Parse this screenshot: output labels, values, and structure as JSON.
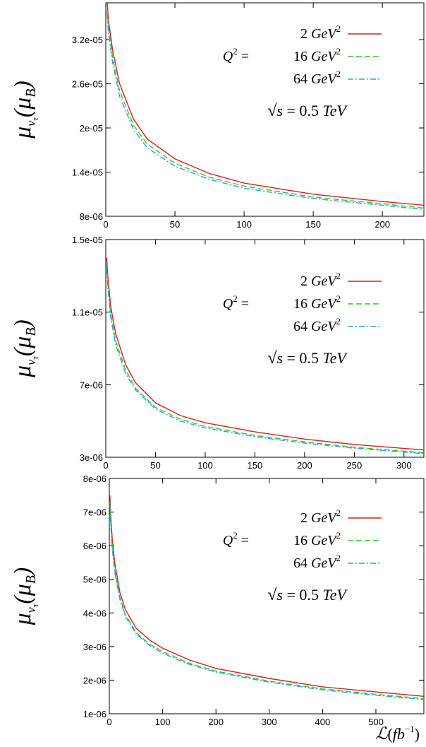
{
  "chart_data": [
    {
      "type": "line",
      "xlabel": "",
      "ylabel": "μ_ντ(μ_B)",
      "xlim": [
        0,
        230
      ],
      "ylim": [
        8e-06,
        3.7e-05
      ],
      "xticks": [
        0,
        50,
        100,
        150,
        200
      ],
      "xtick_labels": [
        "0",
        "50",
        "100",
        "150",
        "200"
      ],
      "yticks": [
        8e-06,
        1.4e-05,
        2e-05,
        2.6e-05,
        3.2e-05
      ],
      "ytick_labels": [
        "8e-06",
        "1.4e-05",
        "2e-05",
        "2.6e-05",
        "3.2e-05"
      ],
      "legend_prefix": "Q² =",
      "legend_position": "top-right",
      "annotation": "√s = 0.5 TeV",
      "series": [
        {
          "name": "2 GeV²",
          "color": "#e41a1c",
          "dash": "solid",
          "x": [
            1,
            2,
            5,
            10,
            20,
            30,
            50,
            75,
            100,
            150,
            200,
            230
          ],
          "y": [
            3.7e-05,
            3.45e-05,
            3.05e-05,
            2.6e-05,
            2.12e-05,
            1.85e-05,
            1.58e-05,
            1.38e-05,
            1.25e-05,
            1.1e-05,
            1e-05,
            9.5e-06
          ]
        },
        {
          "name": "16 GeV²",
          "color": "#2ec82e",
          "dash": "dashed",
          "x": [
            1,
            2,
            5,
            10,
            20,
            30,
            50,
            75,
            100,
            150,
            200,
            230
          ],
          "y": [
            3.6e-05,
            3.35e-05,
            2.95e-05,
            2.5e-05,
            2.04e-05,
            1.78e-05,
            1.52e-05,
            1.33e-05,
            1.21e-05,
            1.06e-05,
            9.7e-06,
            9.1e-06
          ]
        },
        {
          "name": "64 GeV²",
          "color": "#1ea7e0",
          "dash": "dashdot",
          "x": [
            1,
            2,
            5,
            10,
            20,
            30,
            50,
            75,
            100,
            150,
            200,
            230
          ],
          "y": [
            3.55e-05,
            3.28e-05,
            2.88e-05,
            2.43e-05,
            1.98e-05,
            1.73e-05,
            1.48e-05,
            1.3e-05,
            1.18e-05,
            1.04e-05,
            9.5e-06,
            8.9e-06
          ]
        }
      ]
    },
    {
      "type": "line",
      "xlabel": "",
      "ylabel": "μ_ντ(μ_B)",
      "xlim": [
        0,
        320
      ],
      "ylim": [
        3e-06,
        1.5e-05
      ],
      "xticks": [
        0,
        50,
        100,
        150,
        200,
        250,
        300
      ],
      "xtick_labels": [
        "0",
        "50",
        "100",
        "150",
        "200",
        "250",
        "300"
      ],
      "yticks": [
        3e-06,
        7e-06,
        1.1e-05,
        1.5e-05
      ],
      "ytick_labels": [
        "3e-06",
        "7e-06",
        "1.1e-05",
        "1.5e-05"
      ],
      "legend_prefix": "Q² =",
      "legend_position": "top-right",
      "annotation": "√s = 0.5 TeV",
      "series": [
        {
          "name": "2 GeV²",
          "color": "#e41a1c",
          "dash": "solid",
          "x": [
            1,
            2,
            5,
            10,
            20,
            30,
            50,
            75,
            100,
            150,
            200,
            250,
            320
          ],
          "y": [
            1.4e-05,
            1.3e-05,
            1.13e-05,
            9.8e-06,
            8.1e-06,
            7.1e-06,
            6e-06,
            5.3e-06,
            4.9e-06,
            4.4e-06,
            4e-06,
            3.7e-06,
            3.4e-06
          ]
        },
        {
          "name": "16 GeV²",
          "color": "#2ec82e",
          "dash": "dashed",
          "x": [
            1,
            2,
            5,
            10,
            20,
            30,
            50,
            75,
            100,
            150,
            200,
            250,
            320
          ],
          "y": [
            1.36e-05,
            1.26e-05,
            1.09e-05,
            9.4e-06,
            7.8e-06,
            6.8e-06,
            5.75e-06,
            5.1e-06,
            4.7e-06,
            4.2e-06,
            3.85e-06,
            3.55e-06,
            3.25e-06
          ]
        },
        {
          "name": "64 GeV²",
          "color": "#1ea7e0",
          "dash": "dashdot",
          "x": [
            1,
            2,
            5,
            10,
            20,
            30,
            50,
            75,
            100,
            150,
            200,
            250,
            320
          ],
          "y": [
            1.34e-05,
            1.24e-05,
            1.07e-05,
            9.2e-06,
            7.6e-06,
            6.7e-06,
            5.65e-06,
            5e-06,
            4.62e-06,
            4.13e-06,
            3.78e-06,
            3.5e-06,
            3.2e-06
          ]
        }
      ]
    },
    {
      "type": "line",
      "xlabel": "ℒ(fb⁻¹)",
      "ylabel": "μ_ντ(μ_B)",
      "xlim": [
        0,
        590
      ],
      "ylim": [
        1e-06,
        8e-06
      ],
      "xticks": [
        0,
        100,
        200,
        300,
        400,
        500
      ],
      "xtick_labels": [
        "0",
        "100",
        "200",
        "300",
        "400",
        "500"
      ],
      "yticks": [
        1e-06,
        2e-06,
        3e-06,
        4e-06,
        5e-06,
        6e-06,
        7e-06,
        8e-06
      ],
      "ytick_labels": [
        "1e-06",
        "2e-06",
        "3e-06",
        "4e-06",
        "5e-06",
        "6e-06",
        "7e-06",
        "8e-06"
      ],
      "legend_prefix": "Q² =",
      "legend_position": "top-right",
      "annotation": "√s = 0.5 TeV",
      "series": [
        {
          "name": "2 GeV²",
          "color": "#e41a1c",
          "dash": "solid",
          "x": [
            1,
            2,
            5,
            10,
            20,
            30,
            50,
            75,
            100,
            150,
            200,
            300,
            400,
            500,
            590
          ],
          "y": [
            7.5e-06,
            7.1e-06,
            6.3e-06,
            5.5e-06,
            4.6e-06,
            4.1e-06,
            3.55e-06,
            3.2e-06,
            2.95e-06,
            2.6e-06,
            2.35e-06,
            2.05e-06,
            1.8e-06,
            1.65e-06,
            1.52e-06
          ]
        },
        {
          "name": "16 GeV²",
          "color": "#2ec82e",
          "dash": "dashed",
          "x": [
            1,
            2,
            5,
            10,
            20,
            30,
            50,
            75,
            100,
            150,
            200,
            300,
            400,
            500,
            590
          ],
          "y": [
            7.3e-06,
            6.9e-06,
            6.1e-06,
            5.3e-06,
            4.45e-06,
            3.95e-06,
            3.42e-06,
            3.08e-06,
            2.85e-06,
            2.5e-06,
            2.27e-06,
            1.97e-06,
            1.74e-06,
            1.58e-06,
            1.45e-06
          ]
        },
        {
          "name": "64 GeV²",
          "color": "#1ea7e0",
          "dash": "dashdot",
          "x": [
            1,
            2,
            5,
            10,
            20,
            30,
            50,
            75,
            100,
            150,
            200,
            300,
            400,
            500,
            590
          ],
          "y": [
            7.2e-06,
            6.8e-06,
            6e-06,
            5.2e-06,
            4.4e-06,
            3.9e-06,
            3.38e-06,
            3.04e-06,
            2.8e-06,
            2.47e-06,
            2.24e-06,
            1.94e-06,
            1.71e-06,
            1.55e-06,
            1.42e-06
          ]
        }
      ]
    }
  ]
}
